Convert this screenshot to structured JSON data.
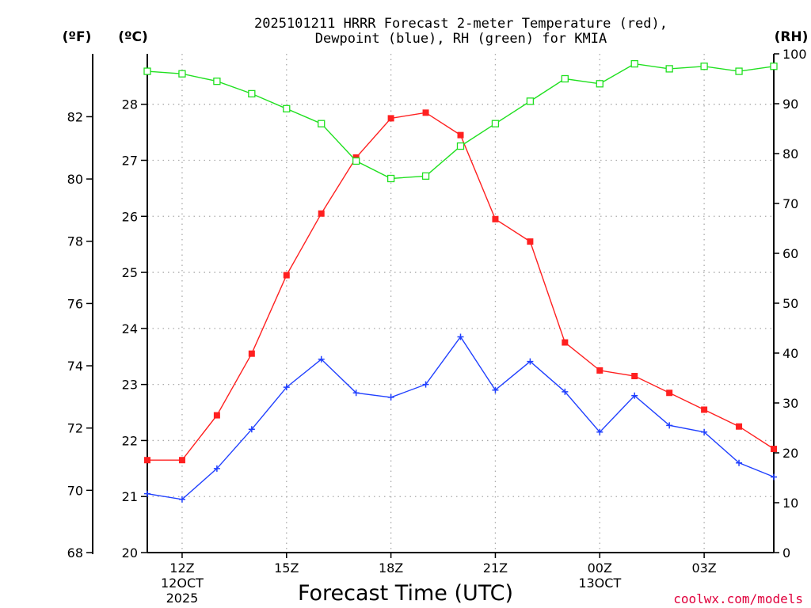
{
  "chart_data": {
    "type": "line",
    "title_line1": "2025101211 HRRR Forecast 2-meter Temperature (red),",
    "title_line2": "Dewpoint (blue), RH (green) for KMIA",
    "xlabel": "Forecast Time (UTC)",
    "credit": "coolwx.com/models",
    "units": {
      "fahrenheit": "(ºF)",
      "celsius": "(ºC)",
      "rh": "(RH)"
    },
    "x_ticks": [
      {
        "hour": 12,
        "label": "12Z",
        "sub1": "12OCT",
        "sub2": "2025"
      },
      {
        "hour": 15,
        "label": "15Z",
        "sub1": "",
        "sub2": ""
      },
      {
        "hour": 18,
        "label": "18Z",
        "sub1": "",
        "sub2": ""
      },
      {
        "hour": 21,
        "label": "21Z",
        "sub1": "",
        "sub2": ""
      },
      {
        "hour": 24,
        "label": "00Z",
        "sub1": "13OCT",
        "sub2": ""
      },
      {
        "hour": 27,
        "label": "03Z",
        "sub1": "",
        "sub2": ""
      }
    ],
    "xlim": [
      11,
      29
    ],
    "celsius_axis": {
      "ylim": [
        20,
        28.9
      ],
      "ticks": [
        20,
        21,
        22,
        23,
        24,
        25,
        26,
        27,
        28
      ]
    },
    "fahrenheit_axis": {
      "ylim": [
        68,
        84.02
      ],
      "ticks": [
        68,
        70,
        72,
        74,
        76,
        78,
        80,
        82
      ]
    },
    "rh_axis": {
      "ylim": [
        0,
        100
      ],
      "ticks": [
        0,
        10,
        20,
        30,
        40,
        50,
        60,
        70,
        80,
        90,
        100
      ]
    },
    "x": [
      11,
      12,
      13,
      14,
      15,
      16,
      17,
      18,
      19,
      20,
      21,
      22,
      23,
      24,
      25,
      26,
      27,
      28,
      29
    ],
    "series": [
      {
        "name": "Temperature",
        "axis": "celsius",
        "color": "#ff2020",
        "marker": "filled-square",
        "values": [
          21.65,
          21.65,
          22.45,
          23.55,
          24.95,
          26.05,
          27.05,
          27.75,
          27.85,
          27.45,
          25.95,
          25.55,
          23.75,
          23.25,
          23.15,
          22.85,
          22.55,
          22.25,
          21.85
        ]
      },
      {
        "name": "Dewpoint",
        "axis": "celsius",
        "color": "#2040ff",
        "marker": "plus",
        "values": [
          21.05,
          20.95,
          21.5,
          22.2,
          22.95,
          23.45,
          22.85,
          22.77,
          23.0,
          23.85,
          22.9,
          23.41,
          22.87,
          22.15,
          22.8,
          22.27,
          22.15,
          21.6,
          21.35
        ]
      },
      {
        "name": "RH",
        "axis": "rh",
        "color": "#20e020",
        "marker": "open-square",
        "values": [
          96.5,
          96.0,
          94.5,
          92.0,
          89.0,
          86.0,
          78.5,
          75.0,
          75.5,
          81.5,
          86.0,
          90.5,
          95.0,
          94.0,
          98.0,
          97.0,
          97.5,
          96.5,
          97.5
        ]
      }
    ]
  }
}
